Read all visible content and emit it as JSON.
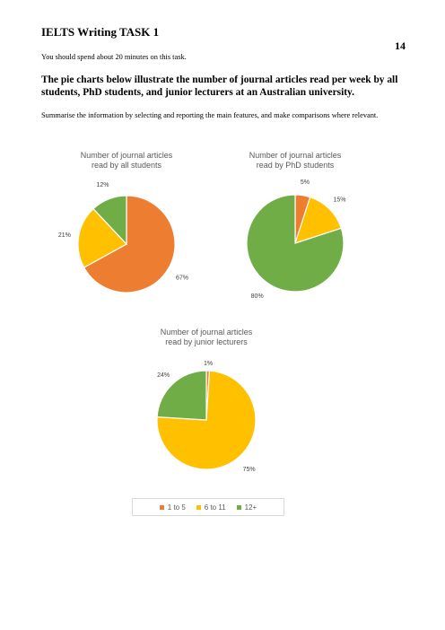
{
  "header": {
    "task_title": "IELTS Writing TASK 1",
    "page_number": "14"
  },
  "prompt": {
    "instruction": "You should spend about 20 minutes on this task.",
    "heading": "The pie charts below illustrate the number of journal articles read per week by all students, PhD students, and junior lecturers at an Australian university.",
    "summary": "Summarise the information by selecting and reporting the main features, and make comparisons where relevant."
  },
  "colors": {
    "1 to 5": "#ed7d31",
    "6 to 11": "#ffc000",
    "12+": "#70ad47"
  },
  "chart_data": [
    {
      "type": "pie",
      "title": "Number of journal articles read by all students",
      "title_lines": [
        "Number of journal articles",
        "read by all students"
      ],
      "categories": [
        "1 to 5",
        "6 to 11",
        "12+"
      ],
      "values": [
        67,
        21,
        12
      ],
      "labels": [
        "67%",
        "21%",
        "12%"
      ]
    },
    {
      "type": "pie",
      "title": "Number of journal articles read by PhD students",
      "title_lines": [
        "Number of journal articles",
        "read by PhD students"
      ],
      "categories": [
        "1 to 5",
        "6 to 11",
        "12+"
      ],
      "values": [
        5,
        15,
        80
      ],
      "labels": [
        "5%",
        "15%",
        "80%"
      ]
    },
    {
      "type": "pie",
      "title": "Number of journal articles read by junior lecturers",
      "title_lines": [
        "Number of journal articles",
        "read by junior lecturers"
      ],
      "categories": [
        "1 to 5",
        "6 to 11",
        "12+"
      ],
      "values": [
        1,
        75,
        24
      ],
      "labels": [
        "1%",
        "75%",
        "24%"
      ]
    }
  ],
  "legend": {
    "placement": "bottom",
    "items": [
      "1 to 5",
      "6 to 11",
      "12+"
    ]
  }
}
